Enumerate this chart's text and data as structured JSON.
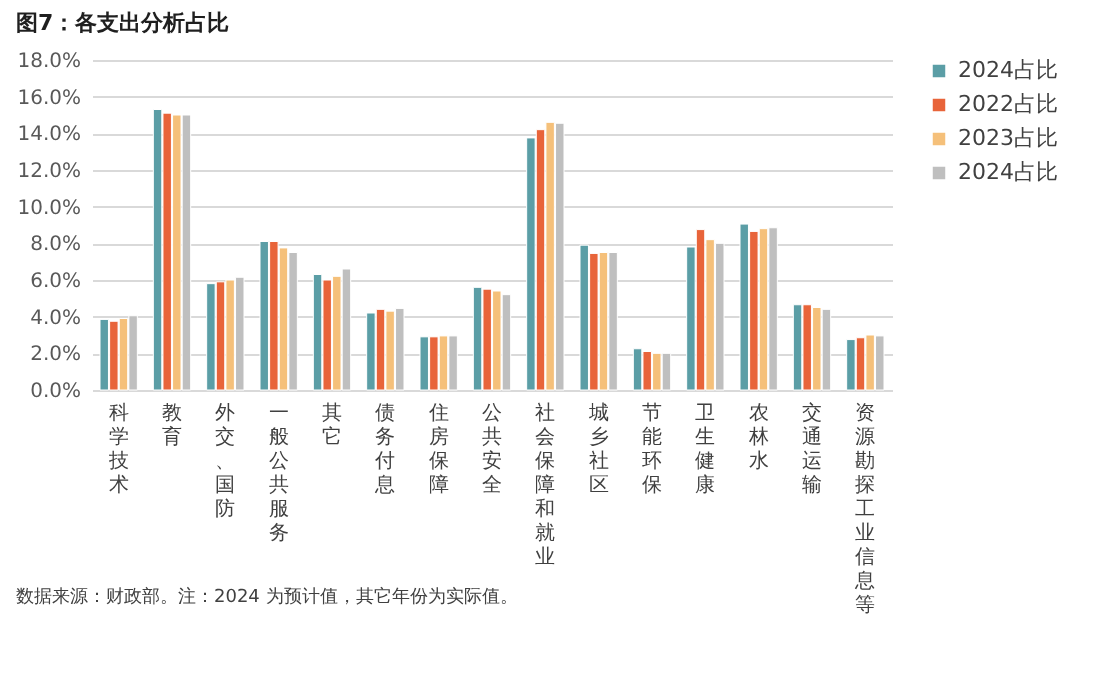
{
  "chart_data": {
    "type": "bar",
    "title": "图7：各支出分析占比",
    "categories": [
      "科学技术",
      "教育",
      "外交、国防",
      "一般公共服务",
      "其它",
      "债务付息",
      "住房保障",
      "公共安全",
      "社会保障和就业",
      "城乡社区",
      "节能环保",
      "卫生健康",
      "农林水",
      "交通运输",
      "资源勘探工业信息等"
    ],
    "series": [
      {
        "name": "2024占比",
        "color": "#5b9ea6",
        "values": [
          3.85,
          15.3,
          5.8,
          8.1,
          6.3,
          4.2,
          2.9,
          5.6,
          13.75,
          7.9,
          2.25,
          7.8,
          9.05,
          4.65,
          2.75
        ]
      },
      {
        "name": "2022占比",
        "color": "#e8643a",
        "values": [
          3.75,
          15.1,
          5.9,
          8.1,
          6.0,
          4.4,
          2.9,
          5.5,
          14.2,
          7.45,
          2.1,
          8.75,
          8.65,
          4.65,
          2.85
        ]
      },
      {
        "name": "2023占比",
        "color": "#f5c07a",
        "values": [
          3.9,
          15.0,
          6.0,
          7.75,
          6.2,
          4.3,
          2.95,
          5.4,
          14.6,
          7.5,
          2.0,
          8.2,
          8.8,
          4.5,
          3.0
        ]
      },
      {
        "name": "2024占比",
        "color": "#bfbfbf",
        "values": [
          4.05,
          15.0,
          6.15,
          7.5,
          6.6,
          4.45,
          2.95,
          5.2,
          14.55,
          7.5,
          2.0,
          8.0,
          8.85,
          4.4,
          2.95
        ]
      }
    ],
    "ylim": [
      0,
      18
    ],
    "yticks": [
      {
        "value": 0,
        "label": "0.0%"
      },
      {
        "value": 2,
        "label": "2.0%"
      },
      {
        "value": 4,
        "label": "4.0%"
      },
      {
        "value": 6,
        "label": "6.0%"
      },
      {
        "value": 8,
        "label": "8.0%"
      },
      {
        "value": 10,
        "label": "10.0%"
      },
      {
        "value": 12,
        "label": "12.0%"
      },
      {
        "value": 14,
        "label": "14.0%"
      },
      {
        "value": 16,
        "label": "16.0%"
      },
      {
        "value": 18,
        "label": "18.0%"
      }
    ],
    "grid": "y",
    "legend": "right",
    "annotations": [
      "数据来源：财政部。注：2024 为预计值，其它年份为实际值。"
    ]
  }
}
